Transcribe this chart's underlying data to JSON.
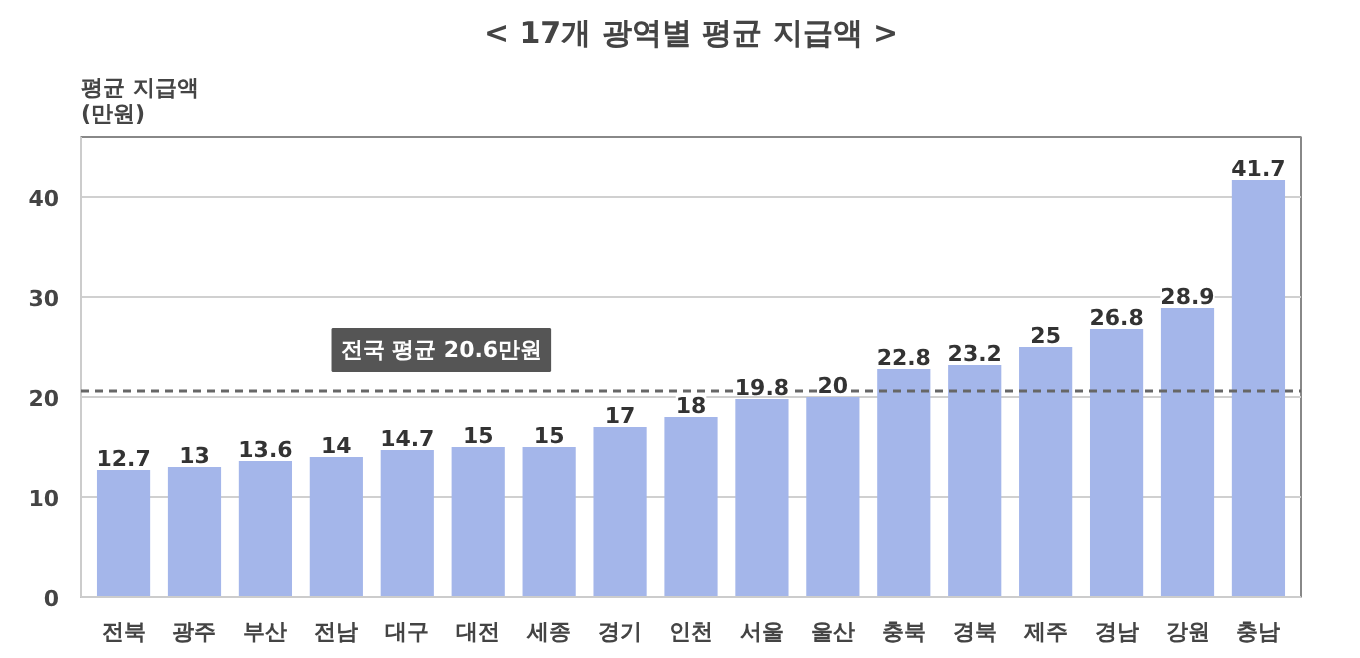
{
  "chart_data": {
    "type": "bar",
    "title": "< 17개 광역별 평균 지급액 >",
    "ylabel": "평균 지급액\n(만원)",
    "categories": [
      "전북",
      "광주",
      "부산",
      "전남",
      "대구",
      "대전",
      "세종",
      "경기",
      "인천",
      "서울",
      "울산",
      "충북",
      "경북",
      "제주",
      "경남",
      "강원",
      "충남"
    ],
    "values": [
      12.7,
      13,
      13.6,
      14,
      14.7,
      15,
      15,
      17,
      18,
      19.8,
      20,
      22.8,
      23.2,
      25,
      26.8,
      28.9,
      41.7
    ],
    "color": "#a4b6ea",
    "data_labels": true,
    "ylim": [
      0,
      46
    ],
    "yticks": [
      0,
      10,
      20,
      30,
      40
    ],
    "grid": "y",
    "ref_lines": [
      {
        "axis": "y",
        "value": 20.6,
        "label": "전국 평균 20.6만원",
        "color": "#666666",
        "line_style": "dashed"
      }
    ]
  }
}
